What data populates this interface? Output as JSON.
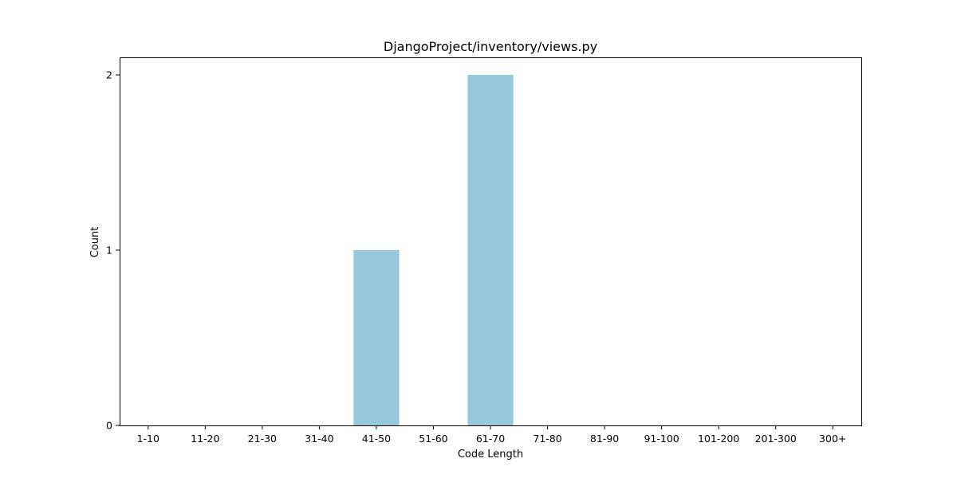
{
  "chart_data": {
    "type": "bar",
    "title": "DjangoProject/inventory/views.py",
    "xlabel": "Code Length",
    "ylabel": "Count",
    "categories": [
      "1-10",
      "11-20",
      "21-30",
      "31-40",
      "41-50",
      "51-60",
      "61-70",
      "71-80",
      "81-90",
      "91-100",
      "101-200",
      "201-300",
      "300+"
    ],
    "values": [
      0,
      0,
      0,
      0,
      1,
      0,
      2,
      0,
      0,
      0,
      0,
      0,
      0
    ],
    "ylim": [
      0,
      2.1
    ],
    "yticks": [
      0,
      1,
      2
    ],
    "bar_color": "#96c9dc",
    "grid": false,
    "legend": "none"
  }
}
